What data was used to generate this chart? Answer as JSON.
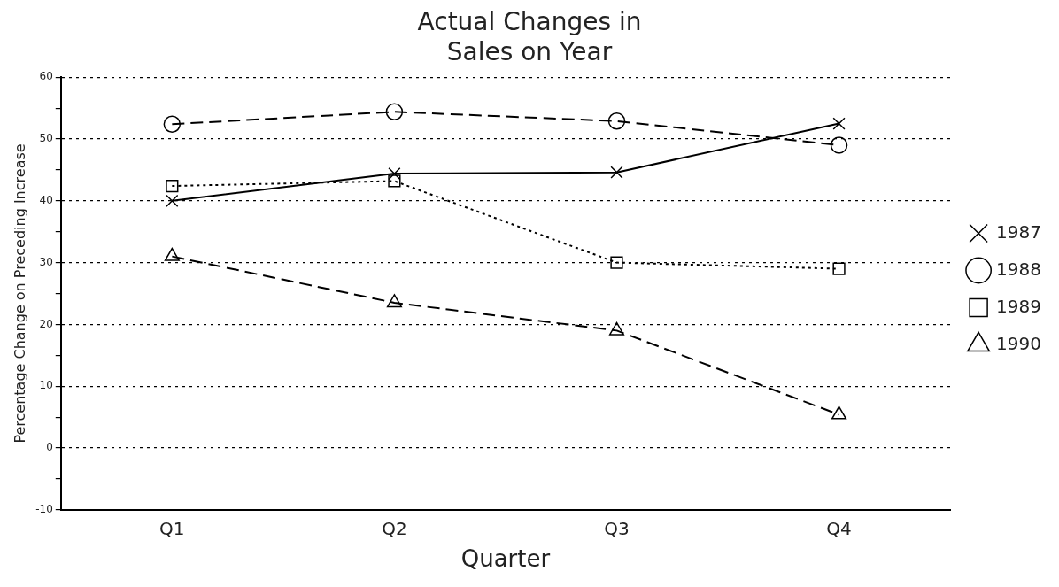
{
  "chart_data": {
    "type": "line",
    "title": [
      "Actual Changes in",
      "Sales on Year"
    ],
    "xlabel": "Quarter",
    "ylabel": "Percentage Change on Preceding Increase",
    "categories": [
      "Q1",
      "Q2",
      "Q3",
      "Q4"
    ],
    "series": [
      {
        "name": "1987",
        "color": "#000000",
        "marker": "cross",
        "line_style": "solid",
        "values": [
          40,
          44.4,
          44.6,
          52.5
        ]
      },
      {
        "name": "1988",
        "color": "#000000",
        "marker": "circle",
        "line_style": "dashed",
        "values": [
          52.4,
          54.4,
          52.9,
          49
        ]
      },
      {
        "name": "1989",
        "color": "#000000",
        "marker": "square",
        "line_style": "dotted",
        "values": [
          42.4,
          43.2,
          30,
          29
        ]
      },
      {
        "name": "1990",
        "color": "#000000",
        "marker": "triangle",
        "line_style": "dashed",
        "values": [
          31,
          23.5,
          19,
          5.4
        ]
      }
    ],
    "ylim": [
      -10,
      60
    ],
    "yticks": [
      -10,
      {
        "value": -5,
        "label": null
      },
      0,
      {
        "value": 5,
        "label": null
      },
      10,
      {
        "value": 15,
        "label": null
      },
      20,
      {
        "value": 25,
        "label": null
      },
      30,
      {
        "value": 35,
        "label": null
      },
      40,
      {
        "value": 45,
        "label": null
      },
      50,
      {
        "value": 55,
        "label": null
      },
      60
    ],
    "grid": "y",
    "legend": "right"
  }
}
